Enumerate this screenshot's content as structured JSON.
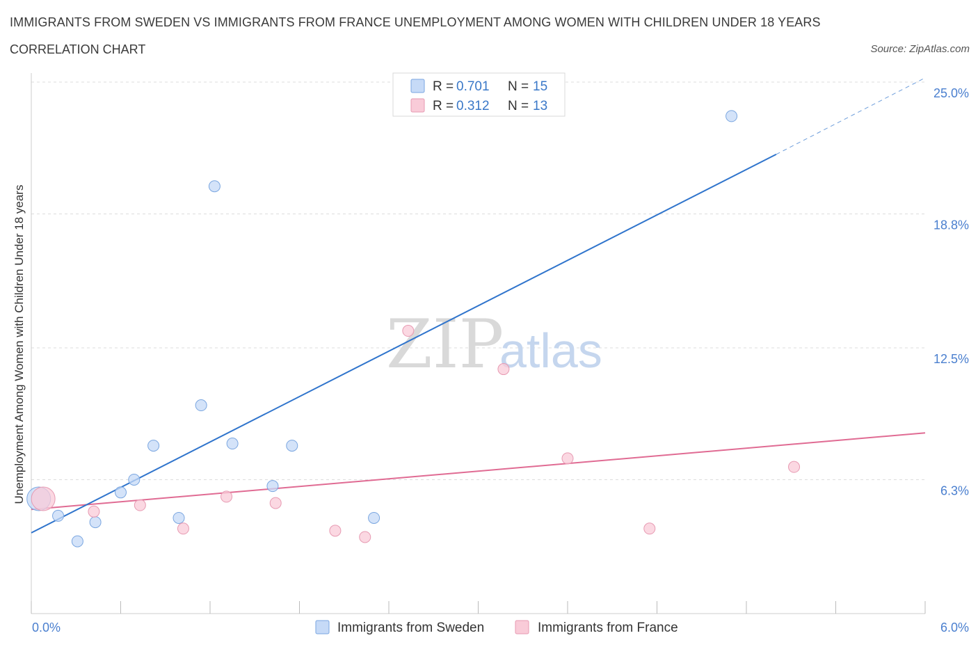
{
  "header": {
    "title": "IMMIGRANTS FROM SWEDEN VS IMMIGRANTS FROM FRANCE UNEMPLOYMENT AMONG WOMEN WITH CHILDREN UNDER 18 YEARS",
    "subtitle": "CORRELATION CHART",
    "source": "Source: ZipAtlas.com"
  },
  "watermark": {
    "zip": "ZIP",
    "atlas": "atlas"
  },
  "legend": {
    "sweden": {
      "r_label": "R = ",
      "r_value": "0.701",
      "n_label": "N = ",
      "n_value": "15"
    },
    "france": {
      "r_label": "R = ",
      "r_value": "0.312",
      "n_label": "N = ",
      "n_value": "13"
    }
  },
  "colors": {
    "sweden_fill": "#c6daf7",
    "sweden_stroke": "#7aa6e0",
    "sweden_line": "#2f74cc",
    "france_fill": "#f9cbd8",
    "france_stroke": "#e79ab2",
    "france_line": "#e06b93",
    "grid": "#dddddd",
    "axis_text": "#4a7fcf"
  },
  "chart_data": {
    "type": "scatter",
    "title": "IMMIGRANTS FROM SWEDEN VS IMMIGRANTS FROM FRANCE UNEMPLOYMENT AMONG WOMEN WITH CHILDREN UNDER 18 YEARS",
    "xlabel": "",
    "ylabel": "Unemployment Among Women with Children Under 18 years",
    "xlim": [
      0,
      6
    ],
    "ylim": [
      0,
      25
    ],
    "x_tick_labels": [
      "0.0%",
      "6.0%"
    ],
    "y_ticks": [
      {
        "value": 6.3,
        "label": "6.3%"
      },
      {
        "value": 12.5,
        "label": "12.5%"
      },
      {
        "value": 18.8,
        "label": "18.8%"
      },
      {
        "value": 25.0,
        "label": "25.0%"
      }
    ],
    "legend_position": "top-center",
    "series": [
      {
        "name": "Immigrants from Sweden",
        "points": [
          {
            "x": 0.05,
            "y": 5.4,
            "size": "large"
          },
          {
            "x": 0.18,
            "y": 4.6
          },
          {
            "x": 0.31,
            "y": 3.4
          },
          {
            "x": 0.43,
            "y": 4.3
          },
          {
            "x": 0.6,
            "y": 5.7
          },
          {
            "x": 0.69,
            "y": 6.3
          },
          {
            "x": 0.82,
            "y": 7.9
          },
          {
            "x": 0.99,
            "y": 4.5
          },
          {
            "x": 1.14,
            "y": 9.8
          },
          {
            "x": 1.23,
            "y": 20.1
          },
          {
            "x": 1.35,
            "y": 8.0
          },
          {
            "x": 1.62,
            "y": 6.0
          },
          {
            "x": 1.75,
            "y": 7.9
          },
          {
            "x": 2.3,
            "y": 4.5
          },
          {
            "x": 4.7,
            "y": 23.4
          }
        ],
        "trend": {
          "x0": 0,
          "y0": 3.8,
          "x1": 5.0,
          "y1": 21.6,
          "dashed_to_x": 6.0,
          "dashed_to_y": 25.2
        }
      },
      {
        "name": "Immigrants from France",
        "points": [
          {
            "x": 0.08,
            "y": 5.4,
            "size": "large"
          },
          {
            "x": 0.42,
            "y": 4.8
          },
          {
            "x": 0.73,
            "y": 5.1
          },
          {
            "x": 1.02,
            "y": 4.0
          },
          {
            "x": 1.31,
            "y": 5.5
          },
          {
            "x": 1.64,
            "y": 5.2
          },
          {
            "x": 2.04,
            "y": 3.9
          },
          {
            "x": 2.24,
            "y": 3.6
          },
          {
            "x": 2.53,
            "y": 13.3
          },
          {
            "x": 3.17,
            "y": 11.5
          },
          {
            "x": 3.6,
            "y": 7.3
          },
          {
            "x": 4.15,
            "y": 4.0
          },
          {
            "x": 5.12,
            "y": 6.9
          }
        ],
        "trend": {
          "x0": 0,
          "y0": 4.9,
          "x1": 6.0,
          "y1": 8.5
        }
      }
    ]
  }
}
